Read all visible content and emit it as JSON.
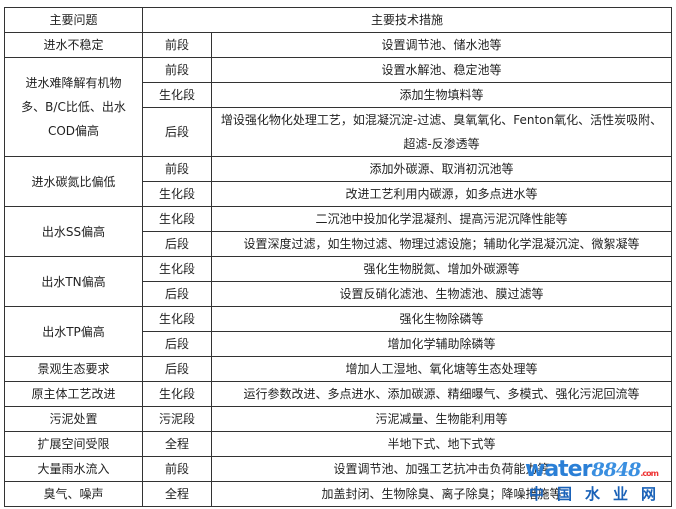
{
  "header": {
    "problem": "主要问题",
    "measures": "主要技术措施"
  },
  "rows": [
    {
      "problem": "进水不稳定",
      "stages": [
        {
          "stage": "前段",
          "measure": "设置调节池、储水池等"
        }
      ]
    },
    {
      "problem": "进水难降解有机物多、B/C比低、出水COD偏高",
      "stages": [
        {
          "stage": "前段",
          "measure": "设置水解池、稳定池等"
        },
        {
          "stage": "生化段",
          "measure": "添加生物填料等"
        },
        {
          "stage": "后段",
          "measure": "增设强化物化处理工艺，如混凝沉淀-过滤、臭氧氧化、Fenton氧化、活性炭吸附、超滤-反渗透等"
        }
      ]
    },
    {
      "problem": "进水碳氮比偏低",
      "stages": [
        {
          "stage": "前段",
          "measure": "添加外碳源、取消初沉池等"
        },
        {
          "stage": "生化段",
          "measure": "改进工艺利用内碳源，如多点进水等"
        }
      ]
    },
    {
      "problem": "出水SS偏高",
      "stages": [
        {
          "stage": "生化段",
          "measure": "二沉池中投加化学混凝剂、提高污泥沉降性能等"
        },
        {
          "stage": "后段",
          "measure": "设置深度过滤，如生物过滤、物理过滤设施；辅助化学混凝沉淀、微絮凝等"
        }
      ]
    },
    {
      "problem": "出水TN偏高",
      "stages": [
        {
          "stage": "生化段",
          "measure": "强化生物脱氮、增加外碳源等"
        },
        {
          "stage": "后段",
          "measure": "设置反硝化滤池、生物滤池、膜过滤等"
        }
      ]
    },
    {
      "problem": "出水TP偏高",
      "stages": [
        {
          "stage": "生化段",
          "measure": "强化生物除磷等"
        },
        {
          "stage": "后段",
          "measure": "增加化学辅助除磷等"
        }
      ]
    },
    {
      "problem": "景观生态要求",
      "stages": [
        {
          "stage": "后段",
          "measure": "增加人工湿地、氧化塘等生态处理等"
        }
      ]
    },
    {
      "problem": "原主体工艺改进",
      "stages": [
        {
          "stage": "生化段",
          "measure": "运行参数改进、多点进水、添加碳源、精细曝气、多模式、强化污泥回流等"
        }
      ]
    },
    {
      "problem": "污泥处置",
      "stages": [
        {
          "stage": "污泥段",
          "measure": "污泥减量、生物能利用等"
        }
      ]
    },
    {
      "problem": "扩展空间受限",
      "stages": [
        {
          "stage": "全程",
          "measure": "半地下式、地下式等"
        }
      ]
    },
    {
      "problem": "大量雨水流入",
      "stages": [
        {
          "stage": "前段",
          "measure": "设置调节池、加强工艺抗冲击负荷能力等"
        }
      ]
    },
    {
      "problem": "臭气、噪声",
      "stages": [
        {
          "stage": "全程",
          "measure": "加盖封闭、生物除臭、离子除臭；降噪措施等"
        }
      ]
    }
  ],
  "watermark": {
    "brand": "water",
    "num": "8848",
    "suffix": ".com",
    "cn": "中国水业网"
  }
}
